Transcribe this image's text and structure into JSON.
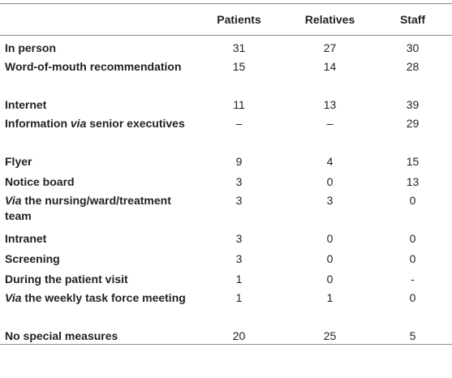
{
  "columns": [
    "",
    "Patients",
    "Relatives",
    "Staff"
  ],
  "rows": [
    {
      "label": "In person",
      "label_italic": "",
      "values": [
        "31",
        "27",
        "30"
      ]
    },
    {
      "label": "Word-of-mouth recommendation",
      "label_italic": "",
      "values": [
        "15",
        "14",
        "28"
      ]
    },
    {
      "label": "Internet",
      "label_italic": "",
      "values": [
        "11",
        "13",
        "39"
      ]
    },
    {
      "label_prefix": "Information ",
      "label_italic": "via",
      "label_suffix": " senior executives",
      "values": [
        "–",
        "–",
        "29"
      ]
    },
    {
      "label": "Flyer",
      "label_italic": "",
      "values": [
        "9",
        "4",
        "15"
      ]
    },
    {
      "label": "Notice board",
      "label_italic": "",
      "values": [
        "3",
        "0",
        "13"
      ]
    },
    {
      "label_prefix": "",
      "label_italic": "Via",
      "label_suffix": " the nursing/ward/treatment team",
      "values": [
        "3",
        "3",
        "0"
      ]
    },
    {
      "label": "Intranet",
      "label_italic": "",
      "values": [
        "3",
        "0",
        "0"
      ]
    },
    {
      "label": "Screening",
      "label_italic": "",
      "values": [
        "3",
        "0",
        "0"
      ]
    },
    {
      "label": "During the patient visit",
      "label_italic": "",
      "values": [
        "1",
        "0",
        "-"
      ]
    },
    {
      "label_prefix": "",
      "label_italic": "Via",
      "label_suffix": " the weekly task force meeting",
      "values": [
        "1",
        "1",
        "0"
      ]
    },
    {
      "label": "No special measures",
      "label_italic": "",
      "values": [
        "20",
        "25",
        "5"
      ]
    }
  ]
}
